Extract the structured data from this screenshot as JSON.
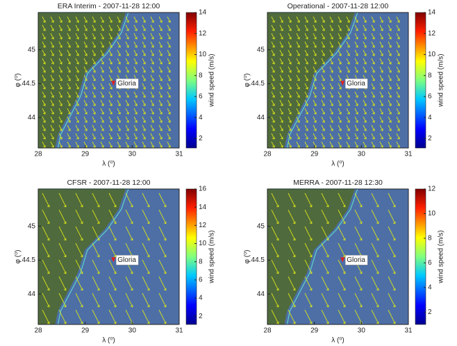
{
  "chart_data": [
    {
      "type": "map",
      "title": "ERA Interim - 2007-11-28 12:00",
      "xlabel": "λ (⁰)",
      "ylabel": "φ (⁰)",
      "xlim": [
        28,
        31
      ],
      "xticks": [
        28,
        29,
        30,
        31
      ],
      "ylim": [
        43.55,
        45.55
      ],
      "yticks": [
        44,
        44.5,
        45
      ],
      "annotations": [
        {
          "text": "Gloria",
          "x": 29.6,
          "y": 44.5
        }
      ],
      "colorbar": {
        "label": "wind speed (m/s)",
        "lim": [
          1.1,
          14
        ],
        "ticks": [
          2,
          4,
          6,
          8,
          10,
          12,
          14
        ]
      }
    },
    {
      "type": "map",
      "title": "Operational - 2007-11-28 12:00",
      "xlabel": "λ (⁰)",
      "ylabel": "φ (⁰)",
      "xlim": [
        28,
        31
      ],
      "xticks": [
        28,
        29,
        30,
        31
      ],
      "ylim": [
        43.55,
        45.55
      ],
      "yticks": [
        44,
        44.5,
        45
      ],
      "annotations": [
        {
          "text": "Gloria",
          "x": 29.6,
          "y": 44.5
        }
      ],
      "colorbar": {
        "label": "wind speed (m/s)",
        "lim": [
          1.1,
          14
        ],
        "ticks": [
          2,
          4,
          6,
          8,
          10,
          12,
          14
        ]
      }
    },
    {
      "type": "map",
      "title": "CFSR - 2007-11-28 12:00",
      "xlabel": "λ (⁰)",
      "ylabel": "φ (⁰)",
      "xlim": [
        28,
        31
      ],
      "xticks": [
        28,
        29,
        30,
        31
      ],
      "ylim": [
        43.55,
        45.55
      ],
      "yticks": [
        44,
        44.5,
        45
      ],
      "annotations": [
        {
          "text": "Gloria",
          "x": 29.6,
          "y": 44.5
        }
      ],
      "colorbar": {
        "label": "wind speed (m/s)",
        "lim": [
          1.1,
          16
        ],
        "ticks": [
          2,
          4,
          6,
          8,
          10,
          12,
          14,
          16
        ]
      }
    },
    {
      "type": "map",
      "title": "MERRA - 2007-11-28 12:30",
      "xlabel": "λ (⁰)",
      "ylabel": "φ (⁰)",
      "xlim": [
        28,
        31
      ],
      "xticks": [
        28,
        29,
        30,
        31
      ],
      "ylim": [
        43.55,
        45.55
      ],
      "yticks": [
        44,
        44.5,
        45
      ],
      "annotations": [
        {
          "text": "Gloria",
          "x": 29.6,
          "y": 44.5
        }
      ],
      "colorbar": {
        "label": "wind speed (m/s)",
        "lim": [
          1.0,
          12
        ],
        "ticks": [
          2,
          4,
          6,
          8,
          10,
          12
        ]
      }
    }
  ]
}
